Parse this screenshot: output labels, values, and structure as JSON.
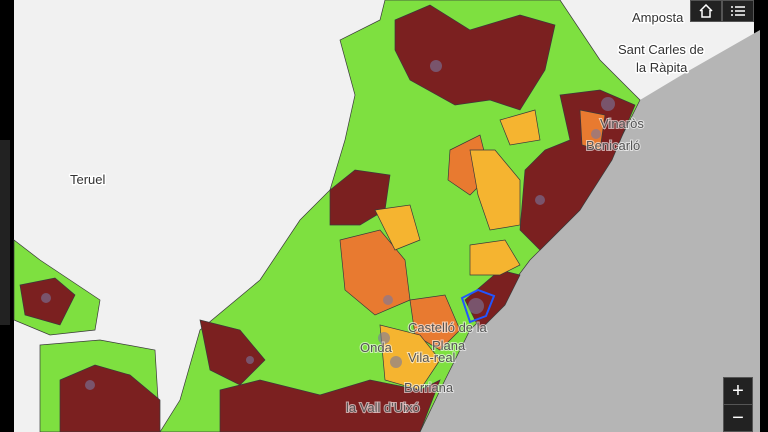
{
  "labels": {
    "amposta": "Amposta",
    "sant_carles": "Sant Carles de",
    "sant_carles_2": "la Ràpita",
    "teruel": "Teruel",
    "vinaros": "Vinaròs",
    "benicarlo": "Benicarló",
    "castello": "Castelló de la",
    "castello_2": "Plana",
    "onda": "Onda",
    "vila_real": "Vila-real",
    "borriana": "Borriana",
    "vall_uixo": "la Vall d'Uixó"
  },
  "controls": {
    "zoom_in": "+",
    "zoom_out": "−"
  }
}
